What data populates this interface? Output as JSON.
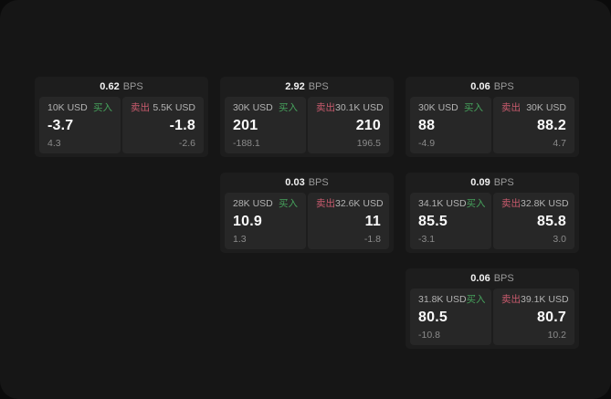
{
  "labels": {
    "buy": "买入",
    "sell": "卖出",
    "bps": "BPS"
  },
  "colors": {
    "buy": "#46a25c",
    "sell": "#c95b6e",
    "card_background": "#1d1d1d",
    "panel_background": "#272727",
    "surface_background": "#161616",
    "value_text": "#fafafa",
    "muted_text": "#8b8b8b"
  },
  "cards": [
    {
      "bps": "0.62",
      "buy": {
        "amount": "10K USD",
        "value": "-3.7",
        "delta": "4.3"
      },
      "sell": {
        "amount": "5.5K USD",
        "value": "-1.8",
        "delta": "-2.6"
      }
    },
    {
      "bps": "2.92",
      "buy": {
        "amount": "30K USD",
        "value": "201",
        "delta": "-188.1"
      },
      "sell": {
        "amount": "30.1K USD",
        "value": "210",
        "delta": "196.5"
      }
    },
    {
      "bps": "0.06",
      "buy": {
        "amount": "30K USD",
        "value": "88",
        "delta": "-4.9"
      },
      "sell": {
        "amount": "30K USD",
        "value": "88.2",
        "delta": "4.7"
      }
    },
    {
      "bps": "0.03",
      "buy": {
        "amount": "28K USD",
        "value": "10.9",
        "delta": "1.3"
      },
      "sell": {
        "amount": "32.6K USD",
        "value": "11",
        "delta": "-1.8"
      }
    },
    {
      "bps": "0.09",
      "buy": {
        "amount": "34.1K USD",
        "value": "85.5",
        "delta": "-3.1"
      },
      "sell": {
        "amount": "32.8K USD",
        "value": "85.8",
        "delta": "3.0"
      }
    },
    {
      "bps": "0.06",
      "buy": {
        "amount": "31.8K USD",
        "value": "80.5",
        "delta": "-10.8"
      },
      "sell": {
        "amount": "39.1K USD",
        "value": "80.7",
        "delta": "10.2"
      }
    }
  ]
}
